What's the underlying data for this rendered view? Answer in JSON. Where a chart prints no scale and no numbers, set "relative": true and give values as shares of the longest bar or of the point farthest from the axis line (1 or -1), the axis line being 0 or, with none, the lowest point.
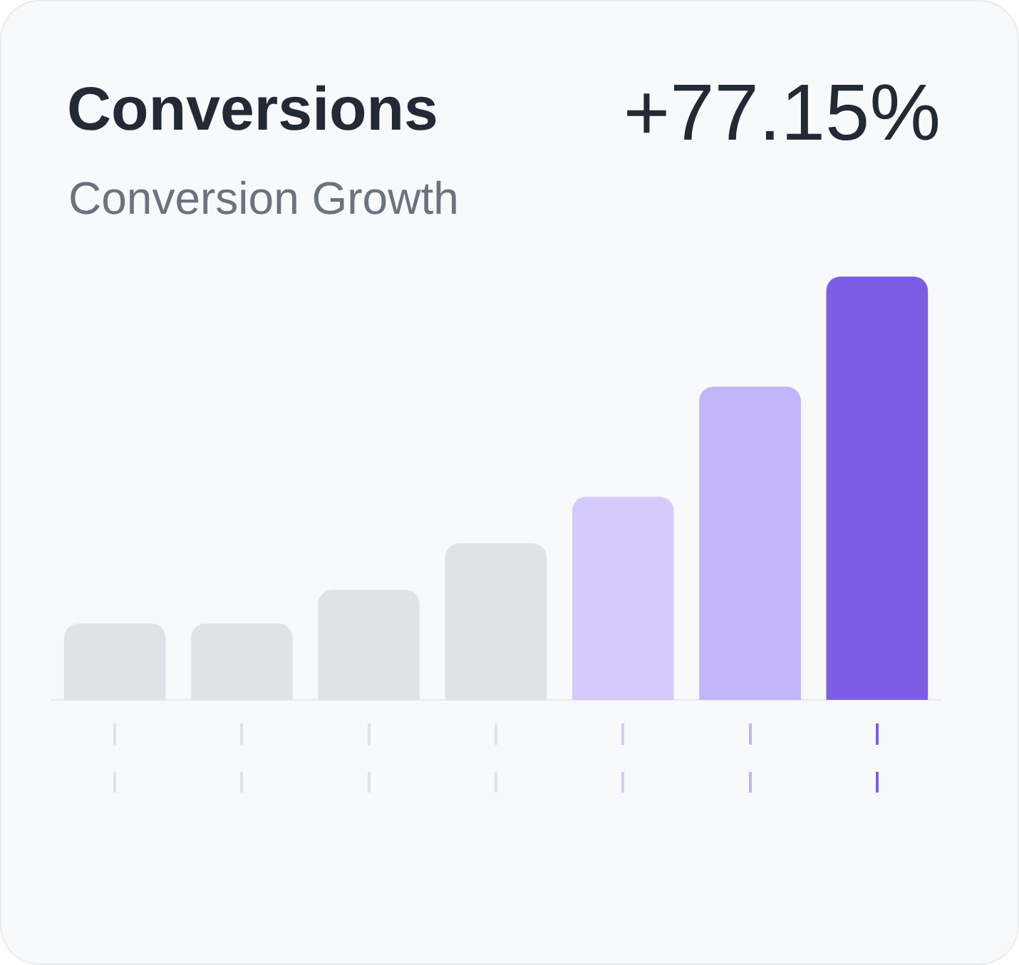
{
  "chart_data": {
    "type": "bar",
    "title": "Conversions",
    "subtitle": "Conversion Growth",
    "annotations": [
      "+77.15%"
    ],
    "categories": [
      null,
      null,
      null,
      null,
      null,
      null,
      null
    ],
    "values": [
      0.18,
      0.18,
      0.26,
      0.37,
      0.48,
      0.74,
      1
    ],
    "colors": [
      "#e1e2e8",
      "#e1e2e8",
      "#e1e2e8",
      "#e1e2e8",
      "#d5cbfa",
      "#c1b4f7",
      "#7e5de6"
    ],
    "relative": true
  }
}
